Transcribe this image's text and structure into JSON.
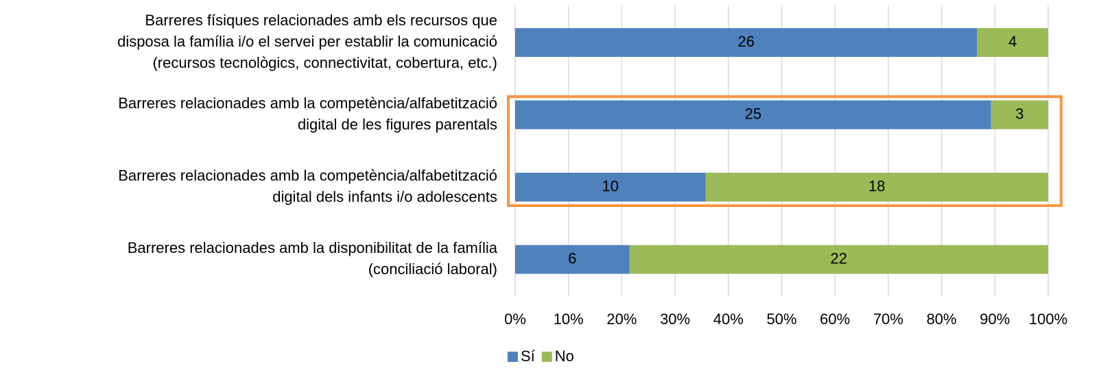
{
  "chart_data": {
    "type": "bar",
    "orientation": "horizontal",
    "stacking": "percent",
    "categories": [
      [
        "Barreres físiques relacionades amb els recursos que",
        "disposa la família i/o el servei per establir la comunicació",
        "(recursos tecnològics, connectivitat, cobertura, etc.)"
      ],
      [
        "Barreres relacionades amb la competència/alfabetització",
        "digital de les figures parentals"
      ],
      [
        "Barreres relacionades amb la competència/alfabetització",
        "digital dels infants i/o adolescents"
      ],
      [
        "Barreres relacionades amb la disponibilitat de la família",
        "(conciliació laboral)"
      ]
    ],
    "series": [
      {
        "name": "Sí",
        "color": "#4f81bd",
        "values": [
          26,
          25,
          10,
          6
        ]
      },
      {
        "name": "No",
        "color": "#9bbb59",
        "values": [
          4,
          3,
          18,
          22
        ]
      }
    ],
    "xlim": [
      0,
      100
    ],
    "xticks": [
      {
        "value": 0,
        "label": "0%"
      },
      {
        "value": 10,
        "label": "10%"
      },
      {
        "value": 20,
        "label": "20%"
      },
      {
        "value": 30,
        "label": "30%"
      },
      {
        "value": 40,
        "label": "40%"
      },
      {
        "value": 50,
        "label": "50%"
      },
      {
        "value": 60,
        "label": "60%"
      },
      {
        "value": 70,
        "label": "70%"
      },
      {
        "value": 80,
        "label": "80%"
      },
      {
        "value": 90,
        "label": "90%"
      },
      {
        "value": 100,
        "label": "100%"
      }
    ],
    "grid": true,
    "legend": "bottom"
  }
}
